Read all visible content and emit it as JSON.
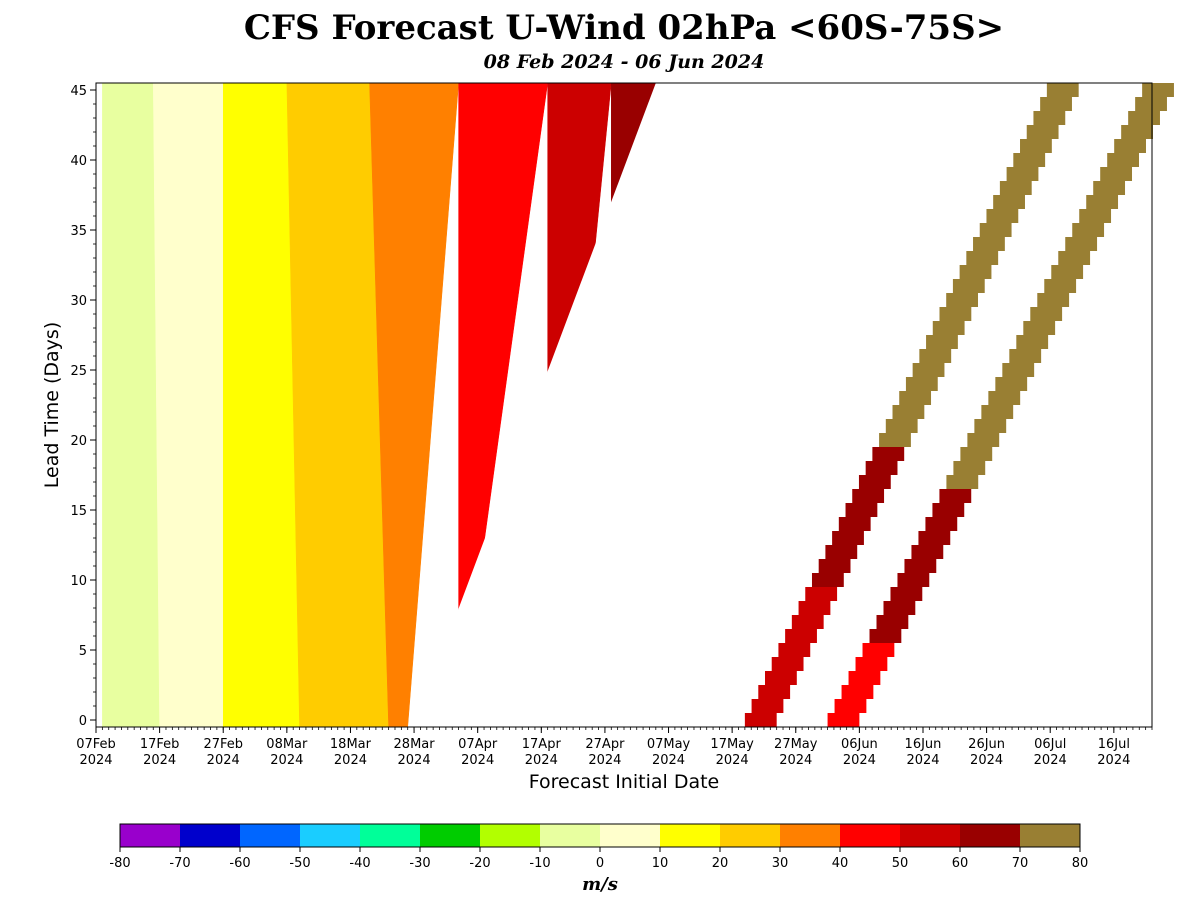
{
  "chart_data": {
    "type": "heatmap",
    "title": "CFS Forecast U-Wind 02hPa <60S-75S>",
    "subtitle": "08 Feb 2024 - 06 Jun 2024",
    "xlabel": "Forecast Initial Date",
    "ylabel": "Lead Time (Days)",
    "x_range": [
      "2024-02-07",
      "2024-07-22"
    ],
    "ylim": [
      -0.5,
      45.5
    ],
    "x_ticks": [
      {
        "date": "2024-02-07",
        "l1": "07Feb",
        "l2": "2024"
      },
      {
        "date": "2024-02-17",
        "l1": "17Feb",
        "l2": "2024"
      },
      {
        "date": "2024-02-27",
        "l1": "27Feb",
        "l2": "2024"
      },
      {
        "date": "2024-03-08",
        "l1": "08Mar",
        "l2": "2024"
      },
      {
        "date": "2024-03-18",
        "l1": "18Mar",
        "l2": "2024"
      },
      {
        "date": "2024-03-28",
        "l1": "28Mar",
        "l2": "2024"
      },
      {
        "date": "2024-04-07",
        "l1": "07Apr",
        "l2": "2024"
      },
      {
        "date": "2024-04-17",
        "l1": "17Apr",
        "l2": "2024"
      },
      {
        "date": "2024-04-27",
        "l1": "27Apr",
        "l2": "2024"
      },
      {
        "date": "2024-05-07",
        "l1": "07May",
        "l2": "2024"
      },
      {
        "date": "2024-05-17",
        "l1": "17May",
        "l2": "2024"
      },
      {
        "date": "2024-05-27",
        "l1": "27May",
        "l2": "2024"
      },
      {
        "date": "2024-06-06",
        "l1": "06Jun",
        "l2": "2024"
      },
      {
        "date": "2024-06-16",
        "l1": "16Jun",
        "l2": "2024"
      },
      {
        "date": "2024-06-26",
        "l1": "26Jun",
        "l2": "2024"
      },
      {
        "date": "2024-07-06",
        "l1": "06Jul",
        "l2": "2024"
      },
      {
        "date": "2024-07-16",
        "l1": "16Jul",
        "l2": "2024"
      }
    ],
    "y_ticks": [
      0,
      5,
      10,
      15,
      20,
      25,
      30,
      35,
      40,
      45
    ],
    "colorbar": {
      "label": "m/s",
      "levels": [
        -80,
        -70,
        -60,
        -50,
        -40,
        -30,
        -20,
        -10,
        0,
        10,
        20,
        30,
        40,
        50,
        60,
        70,
        80
      ],
      "colors": [
        "#9900cc",
        "#0000cc",
        "#0066ff",
        "#1acdff",
        "#00ff99",
        "#00cc00",
        "#b2ff00",
        "#e8ffa0",
        "#ffffcc",
        "#ffff00",
        "#ffcc00",
        "#ff8000",
        "#ff0000",
        "#cc0000",
        "#990000",
        "#997f33"
      ]
    },
    "bands": [
      {
        "value_range": [
          -10,
          0
        ],
        "x_start": [
          "2024-02-08",
          "2024-02-08"
        ],
        "x_end": [
          "2024-02-17",
          "2024-02-16"
        ]
      },
      {
        "value_range": [
          0,
          10
        ],
        "x_start": [
          "2024-02-17",
          "2024-02-16"
        ],
        "x_end": [
          "2024-02-27",
          "2024-02-27"
        ]
      },
      {
        "value_range": [
          10,
          20
        ],
        "x_start": [
          "2024-02-27",
          "2024-02-27"
        ],
        "x_end": [
          "2024-03-10",
          "2024-03-08"
        ]
      },
      {
        "value_range": [
          20,
          30
        ],
        "x_start": [
          "2024-03-10",
          "2024-03-08"
        ],
        "x_end": [
          "2024-03-24",
          "2024-03-21"
        ]
      },
      {
        "value_range": [
          30,
          40
        ],
        "x_start": [
          "2024-03-24",
          "2024-03-21"
        ],
        "x_end": [
          "2024-03-27",
          "2024-04-04"
        ]
      },
      {
        "value_range": [
          40,
          50
        ],
        "x_start": [
          "2024-04-04",
          "2024-04-04"
        ],
        "x_end": [
          "2024-04-04",
          "2024-04-18"
        ]
      },
      {
        "value_range": [
          50,
          60
        ],
        "x_start": [
          "2024-04-18",
          "2024-04-18"
        ],
        "x_end": [
          "2024-04-18",
          "2024-04-28"
        ]
      },
      {
        "value_range": [
          60,
          70
        ],
        "x_start": [
          "2024-04-28",
          "2024-04-28"
        ],
        "x_end": [
          "2024-04-28",
          "2024-05-05"
        ]
      }
    ],
    "forecast_boundary": {
      "lead0_date": "2024-03-28",
      "lead45_date": "2024-05-05"
    },
    "diagonal_streaks": [
      {
        "start_date": "2024-05-19",
        "end_date": "2024-07-06",
        "segments": [
          {
            "value_range": [
              50,
              60
            ],
            "lead_range": [
              0,
              10
            ]
          },
          {
            "value_range": [
              60,
              70
            ],
            "lead_range": [
              10,
              20
            ]
          },
          {
            "value_range": [
              70,
              80
            ],
            "lead_range": [
              20,
              45.5
            ]
          }
        ]
      },
      {
        "start_date": "2024-06-01",
        "end_date": "2024-07-21",
        "segments": [
          {
            "value_range": [
              40,
              50
            ],
            "lead_range": [
              0,
              6
            ]
          },
          {
            "value_range": [
              60,
              70
            ],
            "lead_range": [
              6,
              17
            ]
          },
          {
            "value_range": [
              70,
              80
            ],
            "lead_range": [
              17,
              45.5
            ]
          }
        ]
      }
    ]
  }
}
